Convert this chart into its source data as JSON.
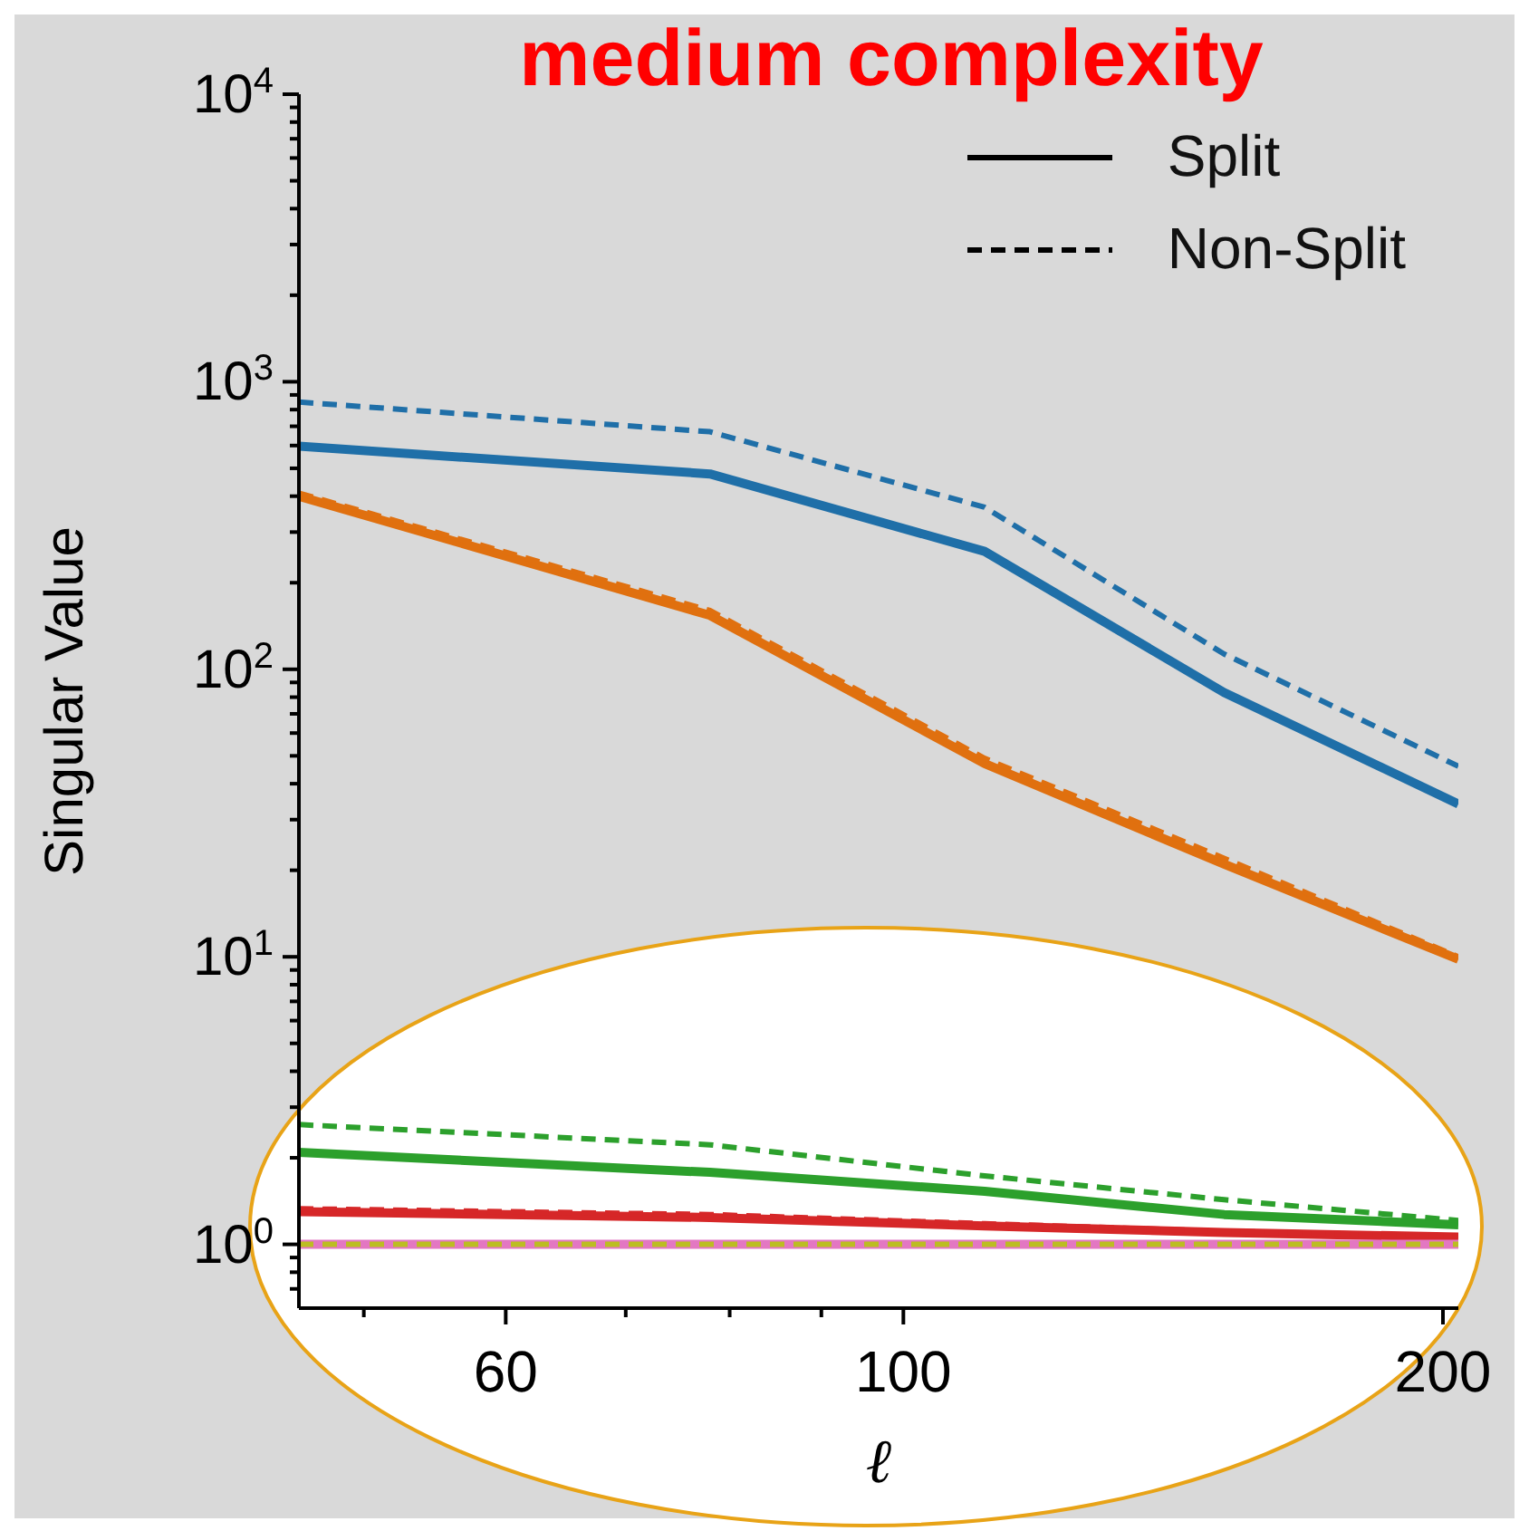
{
  "chart_data": {
    "type": "line",
    "title": "medium complexity",
    "xlabel": "ℓ",
    "ylabel": "Singular Value",
    "x": [
      46,
      78,
      111,
      151,
      204
    ],
    "series": [
      {
        "color": "#1f6fa8",
        "line_style": "solid",
        "values": [
          597,
          478,
          257,
          83,
          34
        ]
      },
      {
        "color": "#1f6fa8",
        "line_style": "dashed",
        "values": [
          850,
          670,
          366,
          113,
          46
        ]
      },
      {
        "color": "#e0700f",
        "line_style": "solid",
        "values": [
          400,
          154,
          47,
          21,
          9.8
        ]
      },
      {
        "color": "#e0700f",
        "line_style": "dashed",
        "values": [
          410,
          160,
          49,
          22,
          10
        ]
      },
      {
        "color": "#2ca02c",
        "line_style": "solid",
        "values": [
          2.09,
          1.78,
          1.53,
          1.27,
          1.17
        ]
      },
      {
        "color": "#2ca02c",
        "line_style": "dashed",
        "values": [
          2.61,
          2.22,
          1.73,
          1.43,
          1.21
        ]
      },
      {
        "color": "#d62728",
        "line_style": "solid",
        "values": [
          1.3,
          1.24,
          1.16,
          1.1,
          1.06
        ]
      },
      {
        "color": "#d62728",
        "line_style": "dashed",
        "values": [
          1.33,
          1.27,
          1.18,
          1.11,
          1.07
        ]
      },
      {
        "color": "#e377c2",
        "line_style": "solid",
        "values": [
          1,
          1,
          1,
          1,
          1
        ]
      },
      {
        "color": "#bcbd22",
        "line_style": "dashed",
        "values": [
          1,
          1,
          1,
          1,
          1
        ]
      },
      {
        "name": "Split",
        "color": "#000000",
        "line_style": "solid",
        "values": [
          null,
          null,
          null,
          null,
          null
        ]
      },
      {
        "name": "Non-Split",
        "color": "#000000",
        "line_style": "dashed",
        "values": [
          null,
          null,
          null,
          null,
          null
        ]
      }
    ],
    "log": "xy",
    "xlim": [
      46,
      204
    ],
    "ylim": [
      0.6,
      10000
    ],
    "xticks": [
      {
        "value": 50,
        "label": null
      },
      {
        "value": 60,
        "label": "60"
      },
      {
        "value": 70,
        "label": null
      },
      {
        "value": 80,
        "label": null
      },
      {
        "value": 90,
        "label": null
      },
      {
        "value": 100,
        "label": "100"
      },
      {
        "value": 200,
        "label": "200"
      }
    ],
    "yticks": [
      {
        "value": 0.7,
        "label": null
      },
      {
        "value": 0.8,
        "label": null
      },
      {
        "value": 0.9,
        "label": null
      },
      {
        "value": 1,
        "label": "10$^{0}$"
      },
      {
        "value": 2,
        "label": null
      },
      {
        "value": 3,
        "label": null
      },
      {
        "value": 4,
        "label": null
      },
      {
        "value": 5,
        "label": null
      },
      {
        "value": 6,
        "label": null
      },
      {
        "value": 7,
        "label": null
      },
      {
        "value": 8,
        "label": null
      },
      {
        "value": 9,
        "label": null
      },
      {
        "value": 10,
        "label": "10$^{1}$"
      },
      {
        "value": 20,
        "label": null
      },
      {
        "value": 30,
        "label": null
      },
      {
        "value": 40,
        "label": null
      },
      {
        "value": 50,
        "label": null
      },
      {
        "value": 60,
        "label": null
      },
      {
        "value": 70,
        "label": null
      },
      {
        "value": 80,
        "label": null
      },
      {
        "value": 90,
        "label": null
      },
      {
        "value": 100,
        "label": "10$^{2}$"
      },
      {
        "value": 200,
        "label": null
      },
      {
        "value": 300,
        "label": null
      },
      {
        "value": 400,
        "label": null
      },
      {
        "value": 500,
        "label": null
      },
      {
        "value": 600,
        "label": null
      },
      {
        "value": 700,
        "label": null
      },
      {
        "value": 800,
        "label": null
      },
      {
        "value": 900,
        "label": null
      },
      {
        "value": 1000,
        "label": "10$^{3}$"
      },
      {
        "value": 2000,
        "label": null
      },
      {
        "value": 3000,
        "label": null
      },
      {
        "value": 4000,
        "label": null
      },
      {
        "value": 5000,
        "label": null
      },
      {
        "value": 6000,
        "label": null
      },
      {
        "value": 7000,
        "label": null
      },
      {
        "value": 8000,
        "label": null
      },
      {
        "value": 9000,
        "label": null
      },
      {
        "value": 10000,
        "label": "10$^{4}$"
      }
    ],
    "grid": false,
    "legend": "top right"
  }
}
